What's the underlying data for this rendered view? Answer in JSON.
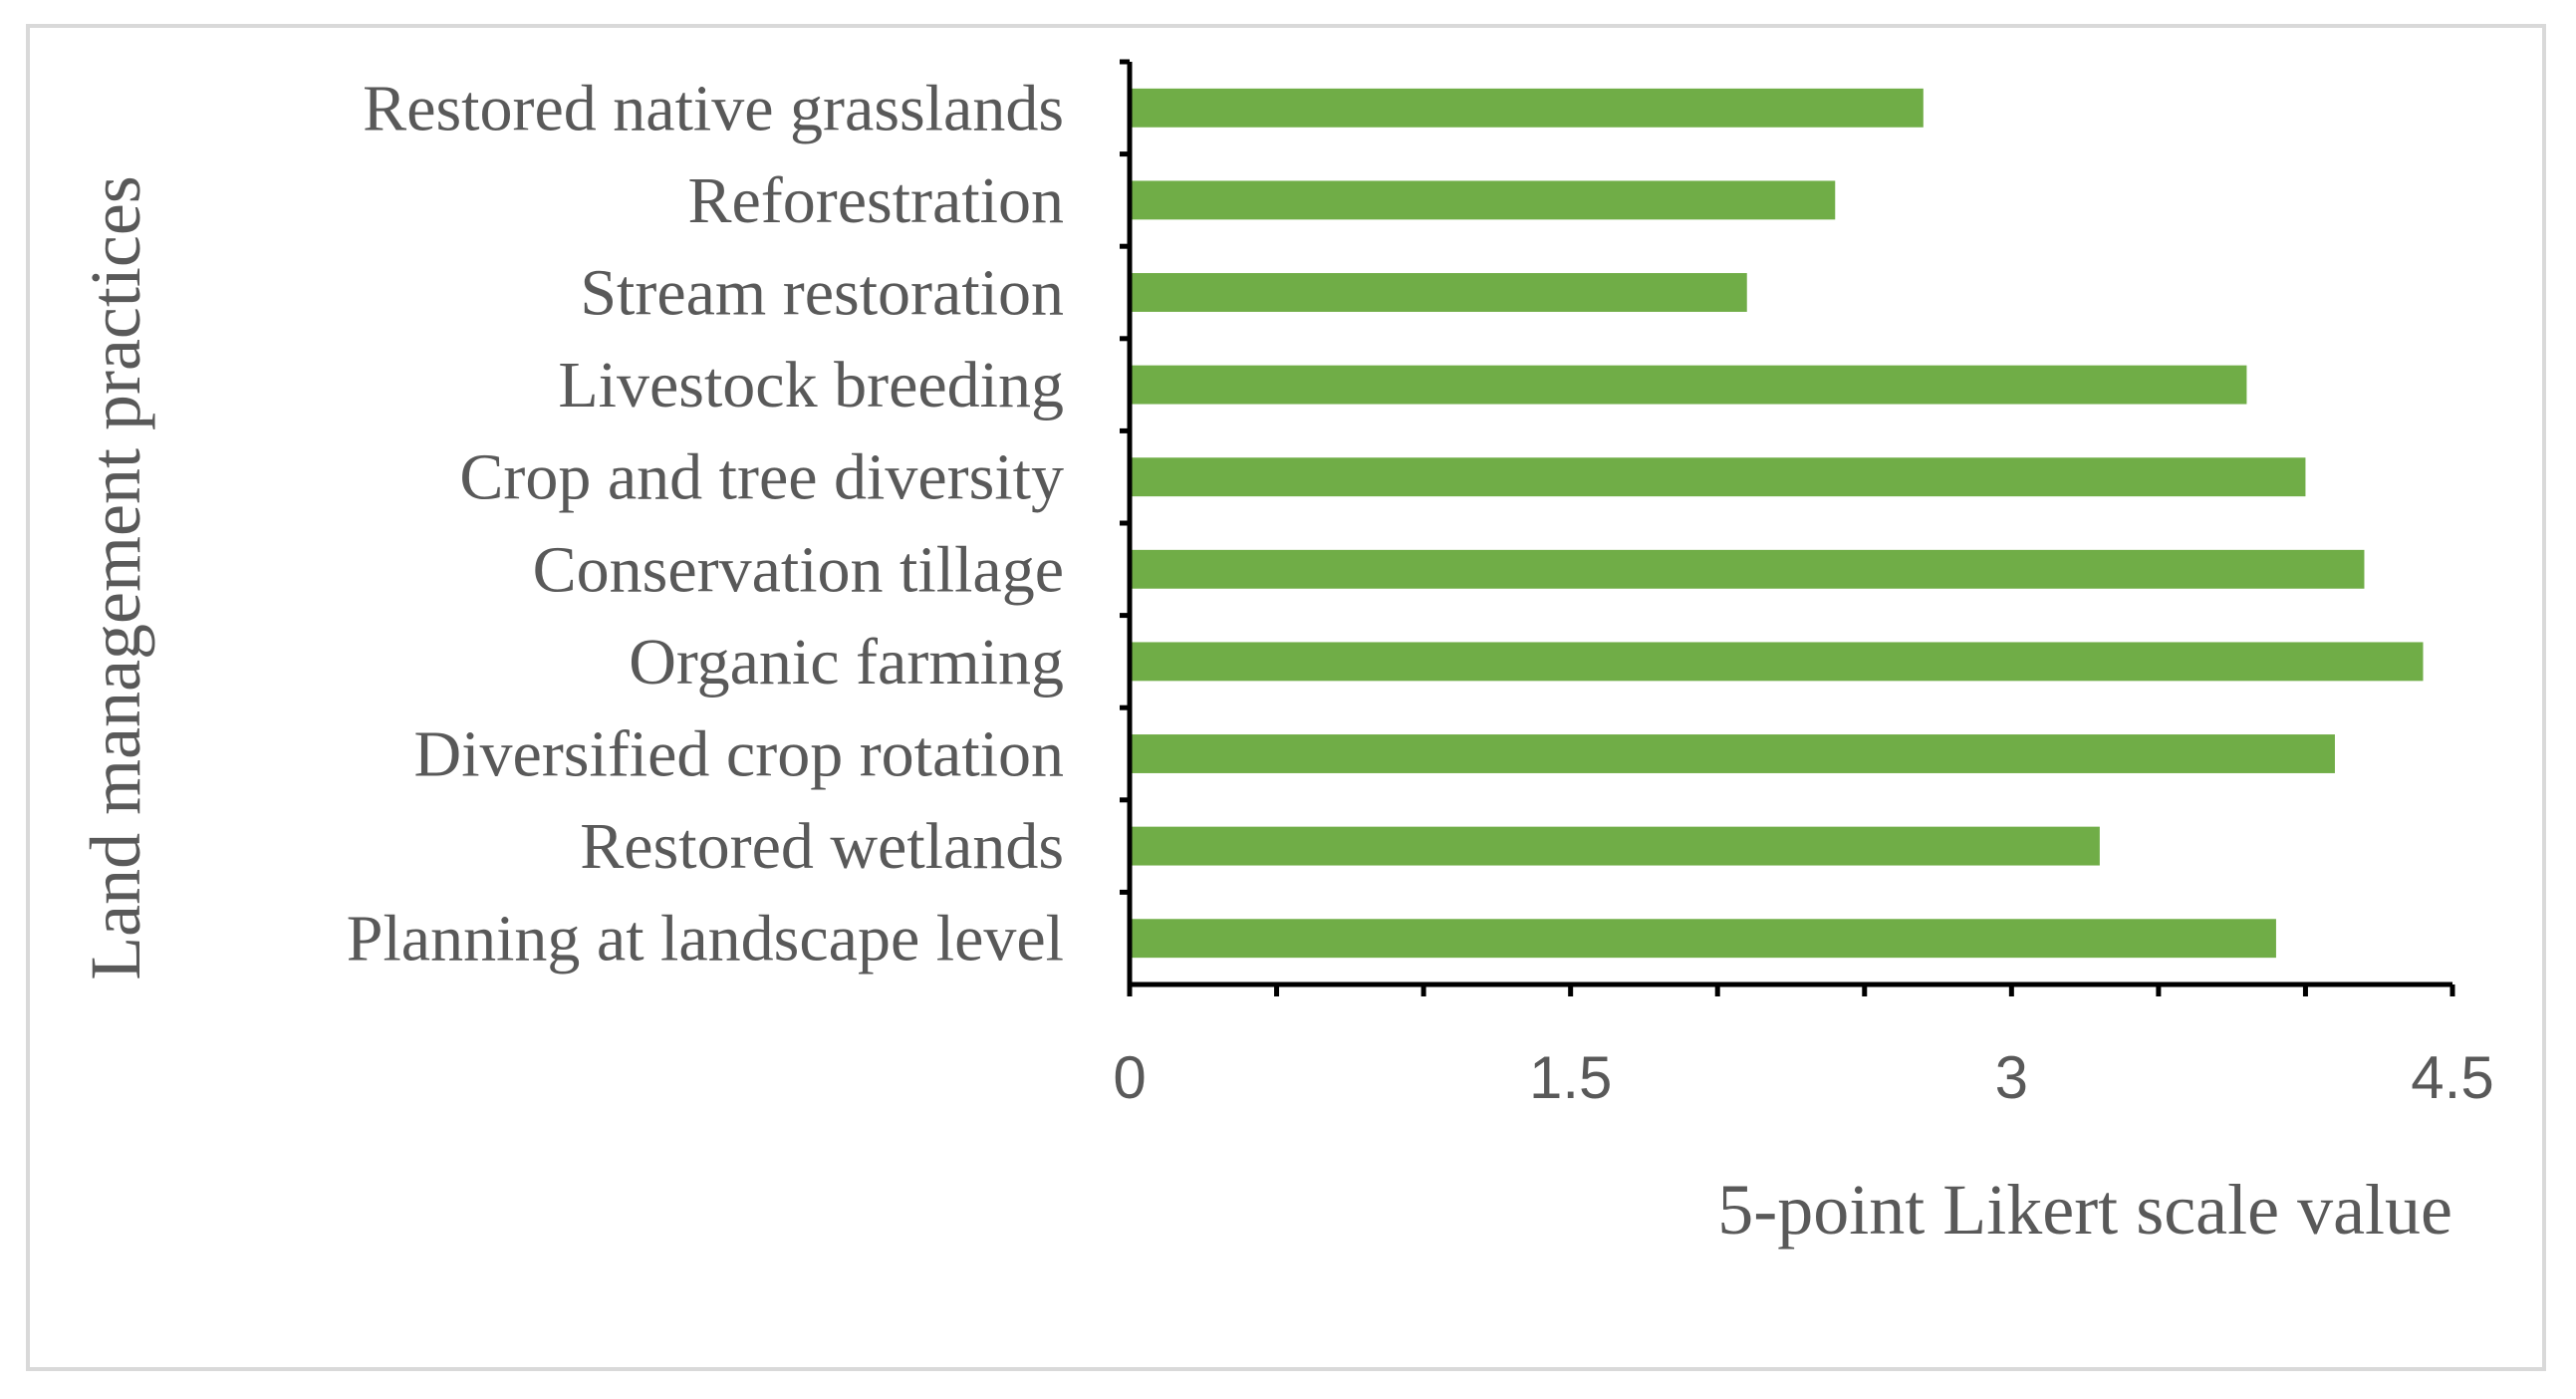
{
  "chart_data": {
    "type": "bar",
    "orientation": "horizontal",
    "categories": [
      "Restored native grasslands",
      "Reforestration",
      "Stream restoration",
      "Livestock breeding",
      "Crop and tree diversity",
      "Conservation tillage",
      "Organic farming",
      "Diversified crop rotation",
      "Restored wetlands",
      "Planning at landscape level"
    ],
    "values": [
      2.7,
      2.4,
      2.1,
      3.8,
      4.0,
      4.2,
      4.4,
      4.1,
      3.3,
      3.9
    ],
    "xlabel": "5-point Likert scale value",
    "ylabel": "Land management practices",
    "xlim": [
      0,
      4.5
    ],
    "xticks": [
      "0",
      "1.5",
      "3",
      "4.5"
    ],
    "minor_tick_step": 0.5,
    "grid": false,
    "legend": "none",
    "bar_color": "#70ad47",
    "axis_color": "#000000",
    "text_color": "#595959"
  }
}
